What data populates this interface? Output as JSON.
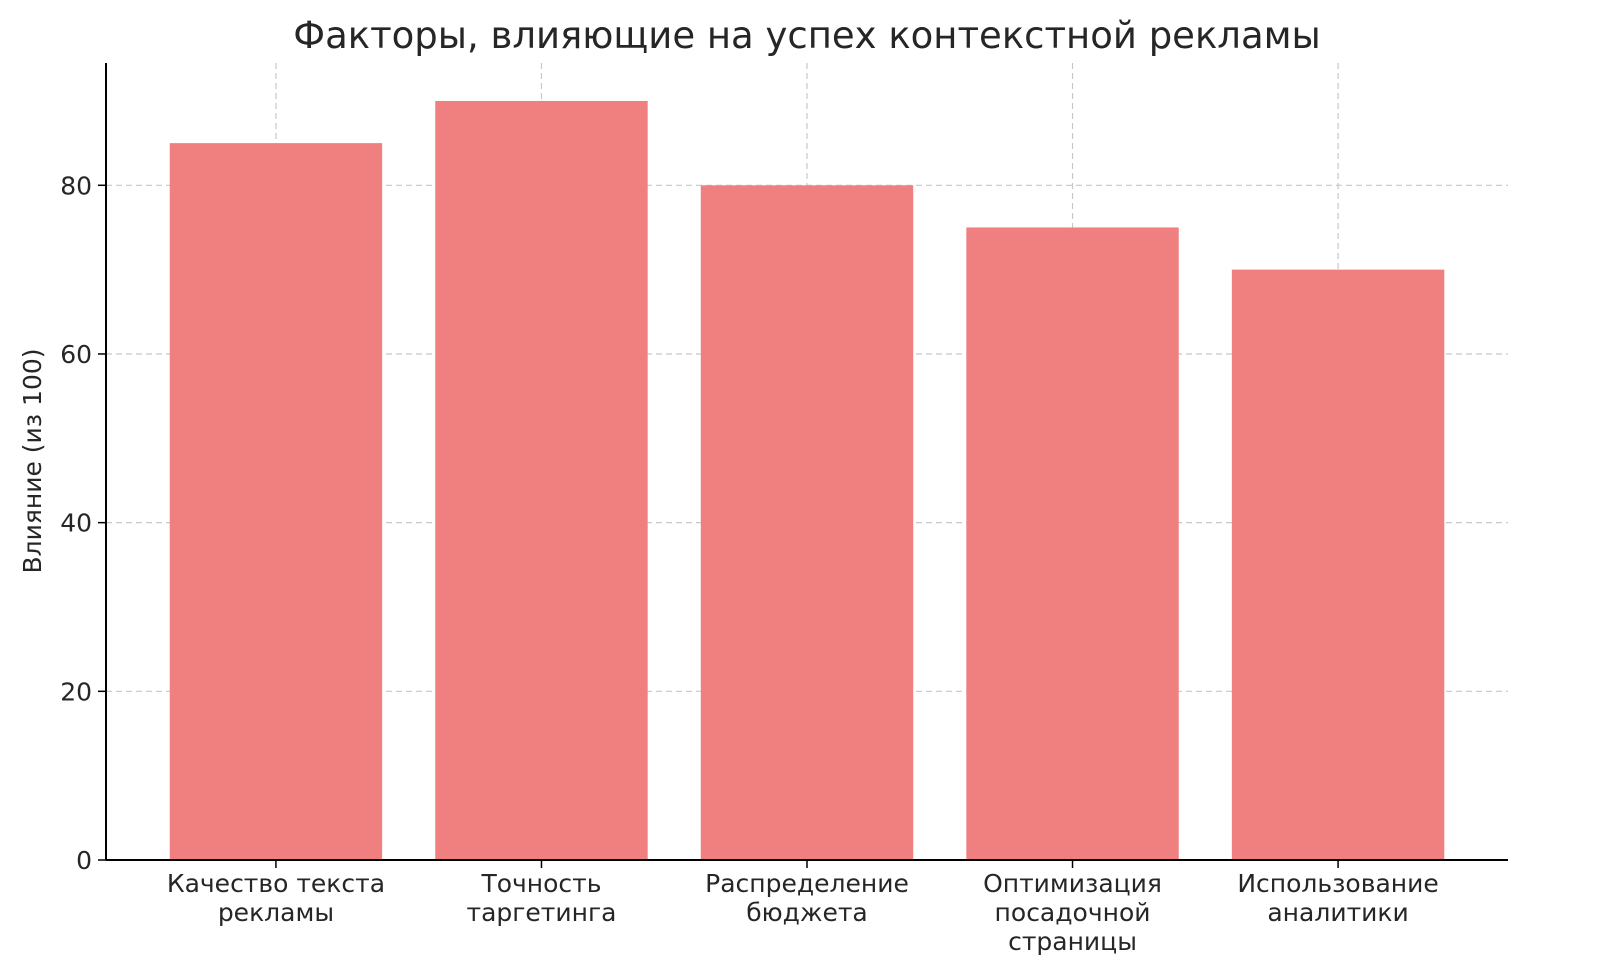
{
  "chart_data": {
    "type": "bar",
    "title": "Факторы, влияющие на успех контекстной рекламы",
    "xlabel": "",
    "ylabel": "Влияние (из 100)",
    "categories": [
      "Качество текста рекламы",
      "Точность таргетинга",
      "Распределение бюджета",
      "Оптимизация посадочной страницы",
      "Использование аналитики"
    ],
    "values": [
      85,
      90,
      80,
      75,
      70
    ],
    "ylim": [
      0,
      94.5
    ],
    "yticks": [
      0,
      20,
      40,
      60,
      80
    ],
    "grid": true,
    "grid_style": "dashed",
    "colors": {
      "bar": "#f08080",
      "grid": "#c8c8c8",
      "axis": "#000000"
    }
  }
}
